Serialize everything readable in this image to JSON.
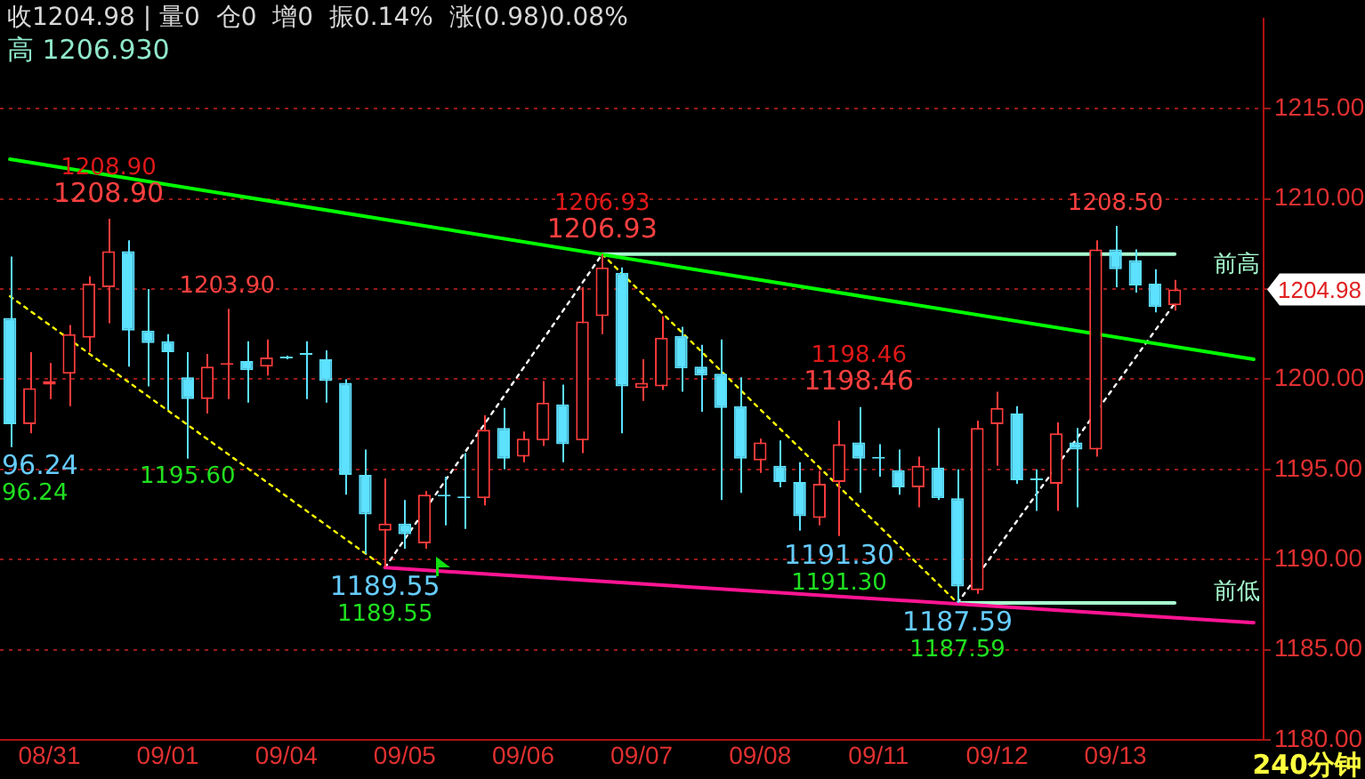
{
  "chart_data": {
    "type": "candlestick",
    "categories": [
      null,
      null,
      "08/31",
      null,
      null,
      null,
      null,
      null,
      "09/01",
      null,
      null,
      null,
      null,
      null,
      "09/04",
      null,
      null,
      null,
      null,
      null,
      "09/05",
      null,
      null,
      null,
      null,
      null,
      "09/06",
      null,
      null,
      null,
      null,
      null,
      "09/07",
      null,
      null,
      null,
      null,
      null,
      "09/08",
      null,
      null,
      null,
      null,
      null,
      "09/11",
      null,
      null,
      null,
      null,
      null,
      "09/12",
      null,
      null,
      null,
      null,
      null,
      "09/13",
      null,
      null,
      null,
      null,
      null,
      null,
      null
    ],
    "ohlc": [
      [
        1203.4,
        1206.8,
        1196.24,
        1197.5
      ],
      [
        1197.5,
        1201.5,
        1197.0,
        1199.5
      ],
      [
        1199.7,
        1200.9,
        1198.9,
        1199.9
      ],
      [
        1200.3,
        1203.0,
        1198.5,
        1202.5
      ],
      [
        1202.3,
        1205.7,
        1201.5,
        1205.3
      ],
      [
        1205.1,
        1208.9,
        1203.1,
        1207.1
      ],
      [
        1207.1,
        1207.7,
        1200.7,
        1202.7
      ],
      [
        1202.7,
        1205.0,
        1199.6,
        1202.0
      ],
      [
        1202.1,
        1202.5,
        1198.3,
        1201.5
      ],
      [
        1200.1,
        1201.5,
        1195.6,
        1198.9
      ],
      [
        1198.9,
        1201.4,
        1198.1,
        1200.7
      ],
      [
        1200.8,
        1203.9,
        1198.9,
        1200.9
      ],
      [
        1201.0,
        1202.1,
        1198.7,
        1200.5
      ],
      [
        1200.7,
        1202.2,
        1200.2,
        1201.2
      ],
      [
        1201.2,
        1201.3,
        1201.1,
        1201.15
      ],
      [
        1201.4,
        1202.1,
        1198.9,
        1201.35
      ],
      [
        1201.1,
        1201.6,
        1198.7,
        1199.9
      ],
      [
        1199.8,
        1200.0,
        1193.6,
        1194.7
      ],
      [
        1194.7,
        1196.1,
        1190.3,
        1192.5
      ],
      [
        1191.6,
        1194.5,
        1189.55,
        1192.0
      ],
      [
        1192.0,
        1193.3,
        1190.6,
        1191.4
      ],
      [
        1190.9,
        1193.8,
        1190.6,
        1193.6
      ],
      [
        1193.55,
        1194.6,
        1191.9,
        1193.5
      ],
      [
        1193.45,
        1195.9,
        1191.7,
        1193.4
      ],
      [
        1193.4,
        1198.0,
        1193.0,
        1197.2
      ],
      [
        1197.3,
        1198.4,
        1195.0,
        1195.6
      ],
      [
        1195.7,
        1197.1,
        1195.4,
        1196.7
      ],
      [
        1196.6,
        1199.9,
        1196.3,
        1198.7
      ],
      [
        1198.6,
        1199.7,
        1195.4,
        1196.4
      ],
      [
        1196.6,
        1205.1,
        1195.9,
        1203.2
      ],
      [
        1203.5,
        1206.93,
        1202.5,
        1206.2
      ],
      [
        1205.9,
        1206.2,
        1197.0,
        1199.6
      ],
      [
        1199.5,
        1201.1,
        1198.8,
        1199.8
      ],
      [
        1199.6,
        1203.5,
        1199.4,
        1202.3
      ],
      [
        1202.4,
        1202.9,
        1199.3,
        1200.6
      ],
      [
        1200.7,
        1201.9,
        1198.2,
        1200.2
      ],
      [
        1200.3,
        1202.2,
        1193.3,
        1198.4
      ],
      [
        1198.5,
        1200.1,
        1193.7,
        1195.6
      ],
      [
        1195.5,
        1196.7,
        1194.8,
        1196.5
      ],
      [
        1195.2,
        1196.6,
        1194.0,
        1194.3
      ],
      [
        1194.3,
        1195.4,
        1191.6,
        1192.4
      ],
      [
        1192.3,
        1194.9,
        1191.9,
        1194.2
      ],
      [
        1194.3,
        1197.7,
        1191.3,
        1196.4
      ],
      [
        1196.5,
        1198.46,
        1193.7,
        1195.6
      ],
      [
        1195.65,
        1196.4,
        1194.6,
        1195.6
      ],
      [
        1194.95,
        1196.1,
        1193.6,
        1194.0
      ],
      [
        1194.0,
        1195.7,
        1192.9,
        1195.2
      ],
      [
        1195.1,
        1197.3,
        1193.3,
        1193.4
      ],
      [
        1193.4,
        1195.0,
        1187.59,
        1188.5
      ],
      [
        1188.3,
        1197.7,
        1188.1,
        1197.3
      ],
      [
        1197.5,
        1199.3,
        1195.2,
        1198.4
      ],
      [
        1198.1,
        1198.5,
        1194.2,
        1194.4
      ],
      [
        1194.45,
        1195.0,
        1192.7,
        1194.4
      ],
      [
        1194.2,
        1197.6,
        1192.7,
        1197.0
      ],
      [
        1196.5,
        1197.3,
        1192.9,
        1196.1
      ],
      [
        1196.1,
        1207.7,
        1195.7,
        1207.2
      ],
      [
        1207.2,
        1208.5,
        1205.1,
        1206.1
      ],
      [
        1206.6,
        1207.2,
        1204.8,
        1205.2
      ],
      [
        1205.3,
        1206.1,
        1203.7,
        1204.0
      ],
      [
        1204.1,
        1205.5,
        1203.8,
        1204.98
      ],
      null,
      null,
      null,
      null
    ],
    "series": [
      {
        "type": "line",
        "color": "#00ff00",
        "line_style": "solid",
        "values": [
          1212.2,
          null,
          null,
          null,
          null,
          null,
          null,
          null,
          null,
          null,
          null,
          null,
          null,
          null,
          null,
          null,
          null,
          null,
          null,
          null,
          null,
          null,
          null,
          null,
          null,
          null,
          null,
          null,
          null,
          null,
          null,
          null,
          null,
          null,
          null,
          null,
          null,
          null,
          null,
          null,
          null,
          null,
          null,
          null,
          null,
          null,
          null,
          null,
          null,
          null,
          null,
          null,
          null,
          null,
          null,
          null,
          null,
          null,
          null,
          null,
          null,
          null,
          null,
          1201.1
        ]
      },
      {
        "type": "line",
        "color": "#ff1493",
        "line_style": "solid",
        "values": [
          null,
          null,
          null,
          null,
          null,
          null,
          null,
          null,
          null,
          null,
          null,
          null,
          null,
          null,
          null,
          null,
          null,
          null,
          null,
          1189.55,
          null,
          null,
          null,
          null,
          null,
          null,
          null,
          null,
          null,
          null,
          null,
          null,
          null,
          null,
          null,
          null,
          null,
          null,
          null,
          null,
          null,
          null,
          null,
          null,
          null,
          null,
          null,
          null,
          null,
          null,
          null,
          null,
          null,
          null,
          null,
          null,
          null,
          null,
          null,
          null,
          null,
          null,
          null,
          1186.5
        ]
      },
      {
        "type": "line",
        "name": "前高",
        "color": "#a8ffd0",
        "line_style": "solid",
        "values": [
          null,
          null,
          null,
          null,
          null,
          null,
          null,
          null,
          null,
          null,
          null,
          null,
          null,
          null,
          null,
          null,
          null,
          null,
          null,
          null,
          null,
          null,
          null,
          null,
          null,
          null,
          null,
          null,
          null,
          null,
          1206.93,
          null,
          null,
          null,
          null,
          null,
          null,
          null,
          null,
          null,
          null,
          null,
          null,
          null,
          null,
          null,
          null,
          null,
          null,
          null,
          null,
          null,
          null,
          null,
          null,
          null,
          null,
          null,
          null,
          1206.93,
          null,
          null,
          null,
          null
        ]
      },
      {
        "type": "line",
        "name": "前低",
        "color": "#a8ffd0",
        "line_style": "solid",
        "values": [
          null,
          null,
          null,
          null,
          null,
          null,
          null,
          null,
          null,
          null,
          null,
          null,
          null,
          null,
          null,
          null,
          null,
          null,
          null,
          null,
          null,
          null,
          null,
          null,
          null,
          null,
          null,
          null,
          null,
          null,
          null,
          null,
          null,
          null,
          null,
          null,
          null,
          null,
          null,
          null,
          null,
          null,
          null,
          null,
          null,
          null,
          null,
          null,
          1187.59,
          null,
          null,
          null,
          null,
          null,
          null,
          null,
          null,
          null,
          null,
          1187.59,
          null,
          null,
          null,
          null
        ]
      },
      {
        "type": "line",
        "color": "#ffff00",
        "line_style": "dotted",
        "values": [
          1204.6,
          null,
          null,
          null,
          null,
          null,
          null,
          null,
          null,
          null,
          null,
          null,
          null,
          null,
          null,
          null,
          null,
          null,
          null,
          1189.55,
          null,
          null,
          null,
          null,
          null,
          null,
          null,
          null,
          null,
          null,
          null,
          null,
          null,
          null,
          null,
          null,
          null,
          null,
          null,
          null,
          null,
          null,
          null,
          null,
          null,
          null,
          null,
          null,
          null,
          null,
          null,
          null,
          null,
          null,
          null,
          null,
          null,
          null,
          null,
          null,
          null,
          null,
          null,
          null
        ]
      },
      {
        "type": "line",
        "color": "#ffffff",
        "line_style": "dotted",
        "values": [
          null,
          null,
          null,
          null,
          null,
          null,
          null,
          null,
          null,
          null,
          null,
          null,
          null,
          null,
          null,
          null,
          null,
          null,
          null,
          1189.55,
          null,
          null,
          null,
          null,
          null,
          null,
          null,
          null,
          null,
          null,
          1206.93,
          null,
          null,
          null,
          null,
          null,
          null,
          null,
          null,
          null,
          null,
          null,
          null,
          null,
          null,
          null,
          null,
          null,
          null,
          null,
          null,
          null,
          null,
          null,
          null,
          null,
          null,
          null,
          null,
          null,
          null,
          null,
          null,
          null
        ]
      },
      {
        "type": "line",
        "color": "#ffff00",
        "line_style": "dotted",
        "values": [
          null,
          null,
          null,
          null,
          null,
          null,
          null,
          null,
          null,
          null,
          null,
          null,
          null,
          null,
          null,
          null,
          null,
          null,
          null,
          null,
          null,
          null,
          null,
          null,
          null,
          null,
          null,
          null,
          null,
          null,
          1206.93,
          null,
          null,
          null,
          null,
          null,
          null,
          null,
          null,
          null,
          null,
          null,
          null,
          null,
          null,
          null,
          null,
          null,
          1187.59,
          null,
          null,
          null,
          null,
          null,
          null,
          null,
          null,
          null,
          null,
          null,
          null,
          null,
          null,
          null
        ]
      },
      {
        "type": "line",
        "color": "#ffffff",
        "line_style": "dotted",
        "values": [
          null,
          null,
          null,
          null,
          null,
          null,
          null,
          null,
          null,
          null,
          null,
          null,
          null,
          null,
          null,
          null,
          null,
          null,
          null,
          null,
          null,
          null,
          null,
          null,
          null,
          null,
          null,
          null,
          null,
          null,
          null,
          null,
          null,
          null,
          null,
          null,
          null,
          null,
          null,
          null,
          null,
          null,
          null,
          null,
          null,
          null,
          null,
          null,
          1187.59,
          null,
          null,
          null,
          null,
          null,
          null,
          null,
          null,
          null,
          null,
          1204.2,
          null,
          null,
          null,
          null
        ]
      }
    ],
    "annotations": [
      "收1204.98 | 量0  仓0  增0  振0.14%  涨(0.98)0.08%",
      "高 1206.930",
      "240分钟",
      "96.24",
      "96.24",
      "1204.98",
      {
        "text": "1208.90",
        "y": 1208.9
      },
      {
        "text": "1208.90",
        "y": 1208.9
      },
      {
        "text": "1203.90",
        "y": 1203.9
      },
      {
        "text": "1195.60",
        "y": 1195.6
      },
      {
        "text": "1189.55",
        "y": 1189.55
      },
      {
        "text": "1189.55",
        "y": 1189.55
      },
      {
        "text": "1206.93",
        "y": 1206.93
      },
      {
        "text": "1206.93",
        "y": 1206.93
      },
      {
        "text": "1198.46",
        "y": 1198.46
      },
      {
        "text": "1198.46",
        "y": 1198.46
      },
      {
        "text": "1191.30",
        "y": 1191.3
      },
      {
        "text": "1191.30",
        "y": 1191.3
      },
      {
        "text": "1187.59",
        "y": 1187.59
      },
      {
        "text": "1187.59",
        "y": 1187.59
      },
      {
        "text": "1208.50",
        "y": 1208.5
      }
    ],
    "ylim": [
      1180,
      1220
    ],
    "yticks": [
      {
        "value": 1180,
        "label": "1180.00"
      },
      {
        "value": 1185,
        "label": "1185.00"
      },
      {
        "value": 1190,
        "label": "1190.00"
      },
      {
        "value": 1195,
        "label": "1195.00"
      },
      {
        "value": 1200,
        "label": "1200.00"
      },
      {
        "value": 1205,
        "label": null
      },
      {
        "value": 1210,
        "label": "1210.00"
      },
      {
        "value": 1215,
        "label": "1215.00"
      }
    ],
    "grid": "y",
    "legend": false
  }
}
